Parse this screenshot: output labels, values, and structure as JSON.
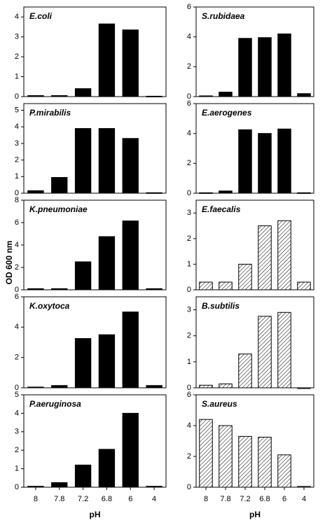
{
  "ylabel": "OD 600 nm",
  "chart_data": [
    {
      "type": "bar",
      "title": "E.coli",
      "values": [
        0.05,
        0.05,
        0.4,
        3.65,
        3.35,
        0.02
      ],
      "color": "#000000",
      "ylim": [
        0,
        4.5
      ],
      "yticks": [
        0,
        1,
        2,
        3,
        4
      ]
    },
    {
      "type": "bar",
      "title": "P.mirabilis",
      "values": [
        0.15,
        0.95,
        3.9,
        3.9,
        3.3,
        0.03
      ],
      "color": "#000000",
      "ylim": [
        0,
        5.4
      ],
      "yticks": [
        0,
        1,
        2,
        3,
        4,
        5
      ]
    },
    {
      "type": "bar",
      "title": "K.pneumoniae",
      "values": [
        0.1,
        0.1,
        2.5,
        4.75,
        6.15,
        0.1
      ],
      "color": "#000000",
      "ylim": [
        0,
        8
      ],
      "yticks": [
        0,
        2,
        4,
        6,
        8
      ]
    },
    {
      "type": "bar",
      "title": "K.oxytoca",
      "values": [
        0.05,
        0.15,
        3.25,
        3.5,
        5.0,
        0.15
      ],
      "color": "#000000",
      "ylim": [
        0,
        6
      ],
      "yticks": [
        0,
        2,
        4,
        6
      ]
    },
    {
      "type": "bar",
      "title": "P.aeruginosa",
      "categories": [
        "8",
        "7.8",
        "7.2",
        "6.8",
        "6",
        "4"
      ],
      "xlabel": "pH",
      "values": [
        0.05,
        0.25,
        1.2,
        2.05,
        4.0,
        0.05
      ],
      "color": "#000000",
      "ylim": [
        0,
        5
      ],
      "yticks": [
        0,
        1,
        2,
        3,
        4,
        5
      ]
    },
    {
      "type": "bar",
      "title": "S.rubidaea",
      "values": [
        0.05,
        0.3,
        3.9,
        3.95,
        4.2,
        0.2
      ],
      "color": "#000000",
      "ylim": [
        0,
        6
      ],
      "yticks": [
        0,
        2,
        4,
        6
      ]
    },
    {
      "type": "bar",
      "title": "E.aerogenes",
      "values": [
        0.03,
        0.15,
        4.25,
        4.0,
        4.3,
        0.03
      ],
      "color": "#000000",
      "ylim": [
        0,
        6
      ],
      "yticks": [
        0,
        2,
        4,
        6
      ]
    },
    {
      "type": "bar",
      "title": "E.faecalis",
      "values": [
        0.3,
        0.3,
        1.0,
        2.5,
        2.7,
        0.3
      ],
      "color": "#000000",
      "pattern": "hatch",
      "ylim": [
        0,
        3.5
      ],
      "yticks": [
        0,
        1,
        2,
        3
      ]
    },
    {
      "type": "bar",
      "title": "B.subtilis",
      "values": [
        0.1,
        0.15,
        1.3,
        2.75,
        2.9,
        0.0
      ],
      "color": "#000000",
      "pattern": "hatch",
      "ylim": [
        0,
        3.5
      ],
      "yticks": [
        0,
        1,
        2,
        3
      ]
    },
    {
      "type": "bar",
      "title": "S.aureus",
      "categories": [
        "8",
        "7.8",
        "7.2",
        "6.8",
        "6",
        "4"
      ],
      "xlabel": "pH",
      "values": [
        4.4,
        4.0,
        3.3,
        3.25,
        2.1,
        0.05
      ],
      "color": "#000000",
      "pattern": "hatch",
      "ylim": [
        0,
        6
      ],
      "yticks": [
        0,
        2,
        4,
        6
      ]
    }
  ]
}
